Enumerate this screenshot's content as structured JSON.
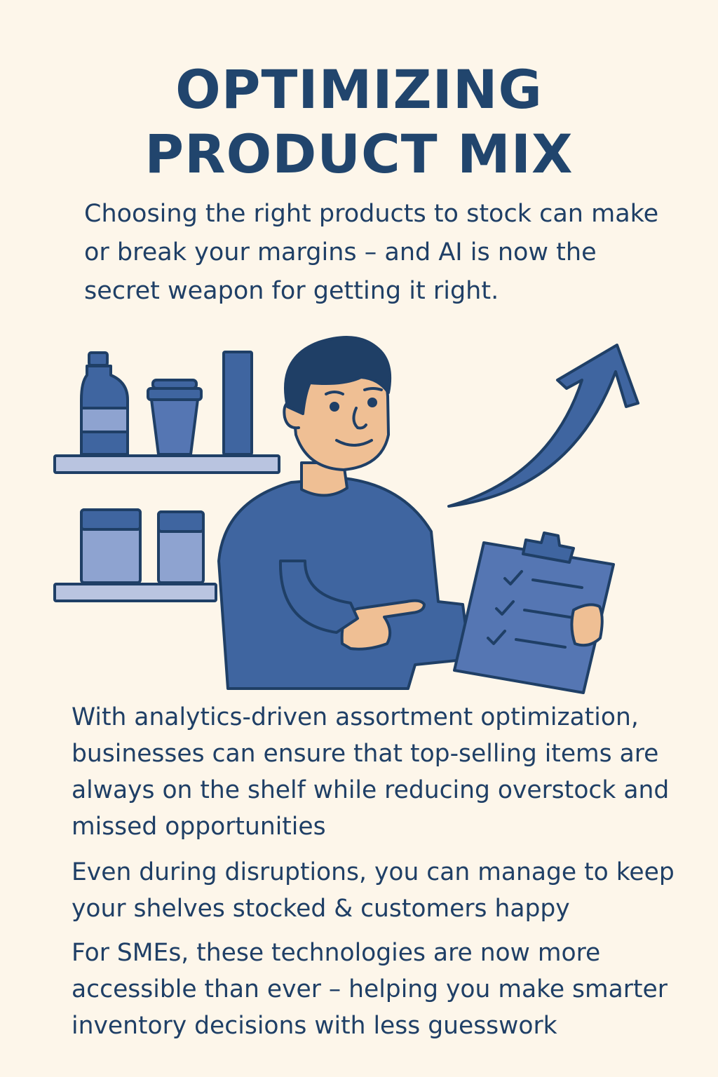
{
  "title": {
    "line1": "OPTIMIZING",
    "line2": "PRODUCT MIX"
  },
  "intro": "Choosing the right products to stock can make or break your margins – and AI is now the secret weapon for getting it right.",
  "paragraphs": [
    "With analytics-driven assortment optimization, businesses can ensure that top-selling items are always on the shelf while reducing overstock and missed opportunities",
    "Even during disruptions, you can manage to keep your shelves stocked & customers happy",
    "For SMEs, these technologies are now more accessible than ever – helping you make smarter inventory decisions with less guesswork"
  ],
  "colors": {
    "background": "#fdf6ea",
    "text": "#1f3f66",
    "primary": "#3f65a0",
    "light": "#8ea3d0",
    "skin": "#efbf94"
  },
  "illustration": {
    "icons": [
      "shelf-icon",
      "bottle-icon",
      "cup-icon",
      "box-icon",
      "jar-icon",
      "person-icon",
      "clipboard-icon",
      "growth-arrow-icon"
    ]
  }
}
